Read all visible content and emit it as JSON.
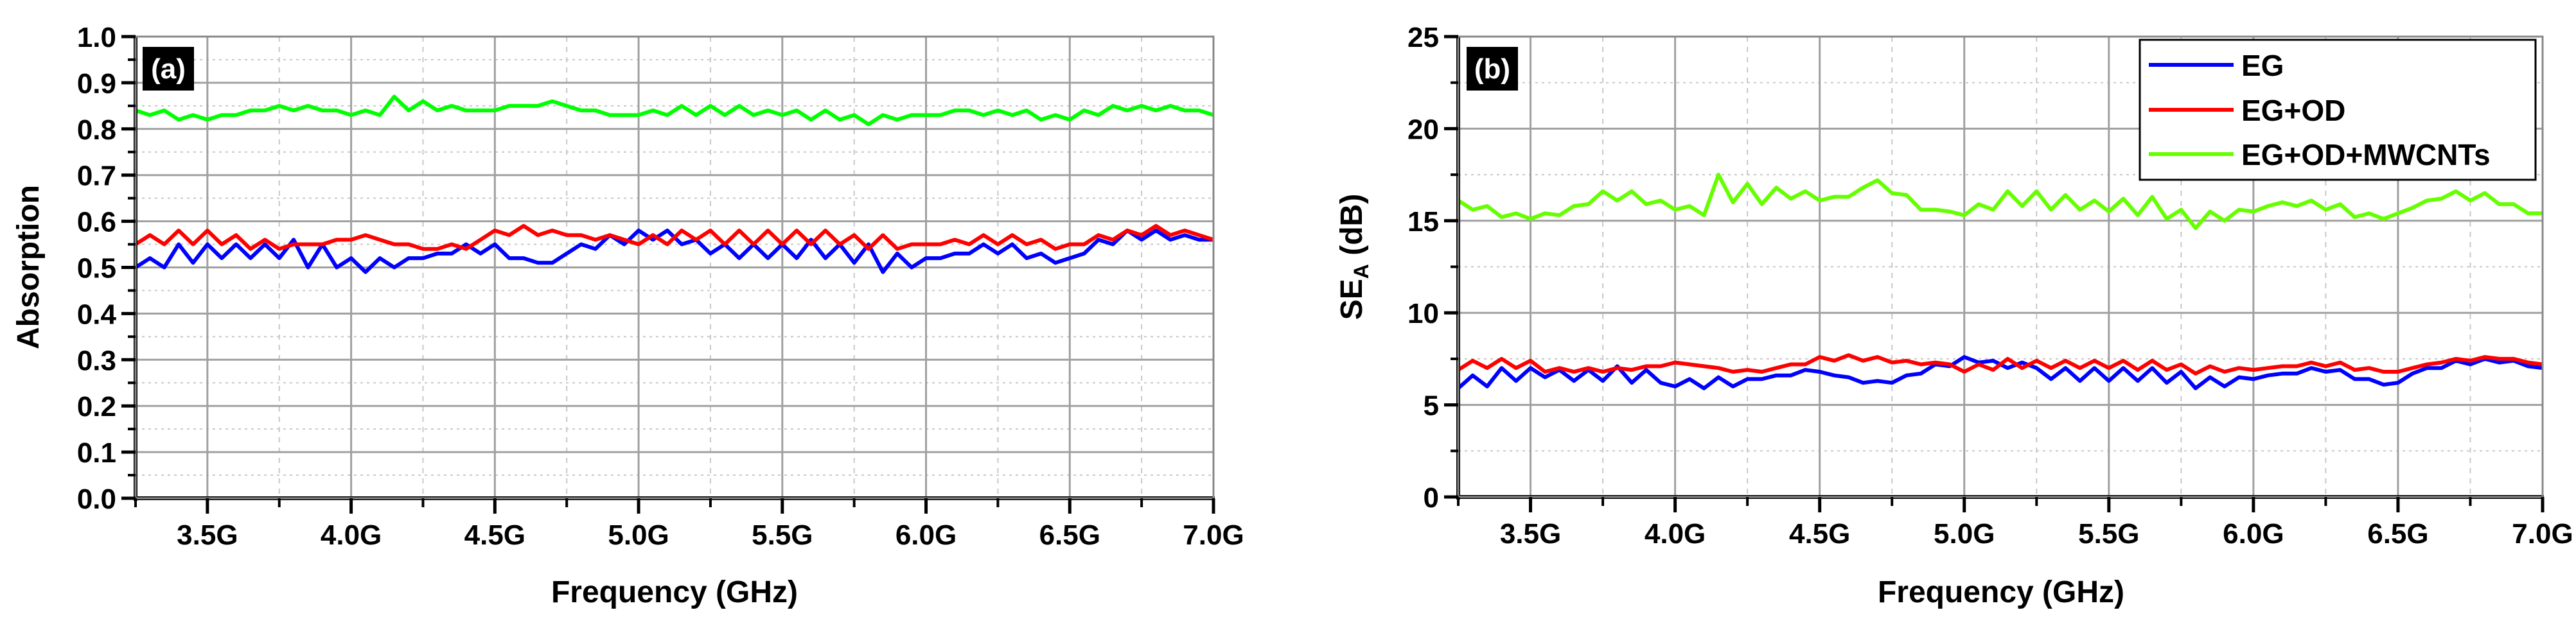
{
  "chart_data": [
    {
      "type": "line",
      "panel_label": "(a)",
      "title": "",
      "xlabel": "Frequency (GHz)",
      "ylabel": "Absorption",
      "xlim": [
        3.25,
        7.0
      ],
      "ylim": [
        0.0,
        1.0
      ],
      "x_ticks": [
        3.5,
        4.0,
        4.5,
        5.0,
        5.5,
        6.0,
        6.5,
        7.0
      ],
      "x_tick_labels": [
        "3.5G",
        "4.0G",
        "4.5G",
        "5.0G",
        "5.5G",
        "6.0G",
        "6.5G",
        "7.0G"
      ],
      "y_ticks": [
        0.0,
        0.1,
        0.2,
        0.3,
        0.4,
        0.5,
        0.6,
        0.7,
        0.8,
        0.9,
        1.0
      ],
      "y_tick_labels": [
        "0.0",
        "0.1",
        "0.2",
        "0.3",
        "0.4",
        "0.5",
        "0.6",
        "0.7",
        "0.8",
        "0.9",
        "1.0"
      ],
      "grid": true,
      "legend_position": "none",
      "x": [
        3.25,
        3.3,
        3.35,
        3.4,
        3.45,
        3.5,
        3.55,
        3.6,
        3.65,
        3.7,
        3.75,
        3.8,
        3.85,
        3.9,
        3.95,
        4.0,
        4.05,
        4.1,
        4.15,
        4.2,
        4.25,
        4.3,
        4.35,
        4.4,
        4.45,
        4.5,
        4.55,
        4.6,
        4.65,
        4.7,
        4.75,
        4.8,
        4.85,
        4.9,
        4.95,
        5.0,
        5.05,
        5.1,
        5.15,
        5.2,
        5.25,
        5.3,
        5.35,
        5.4,
        5.45,
        5.5,
        5.55,
        5.6,
        5.65,
        5.7,
        5.75,
        5.8,
        5.85,
        5.9,
        5.95,
        6.0,
        6.05,
        6.1,
        6.15,
        6.2,
        6.25,
        6.3,
        6.35,
        6.4,
        6.45,
        6.5,
        6.55,
        6.6,
        6.65,
        6.7,
        6.75,
        6.8,
        6.85,
        6.9,
        6.95,
        7.0
      ],
      "series": [
        {
          "name": "EG",
          "color": "#0000ff",
          "values": [
            0.5,
            0.52,
            0.5,
            0.55,
            0.51,
            0.55,
            0.52,
            0.55,
            0.52,
            0.55,
            0.52,
            0.56,
            0.5,
            0.55,
            0.5,
            0.52,
            0.49,
            0.52,
            0.5,
            0.52,
            0.52,
            0.53,
            0.53,
            0.55,
            0.53,
            0.55,
            0.52,
            0.52,
            0.51,
            0.51,
            0.53,
            0.55,
            0.54,
            0.57,
            0.55,
            0.58,
            0.56,
            0.58,
            0.55,
            0.56,
            0.53,
            0.55,
            0.52,
            0.55,
            0.52,
            0.55,
            0.52,
            0.56,
            0.52,
            0.55,
            0.51,
            0.55,
            0.49,
            0.53,
            0.5,
            0.52,
            0.52,
            0.53,
            0.53,
            0.55,
            0.53,
            0.55,
            0.52,
            0.53,
            0.51,
            0.52,
            0.53,
            0.56,
            0.55,
            0.58,
            0.56,
            0.58,
            0.56,
            0.57,
            0.56,
            0.56
          ]
        },
        {
          "name": "EG+OD",
          "color": "#ff0000",
          "values": [
            0.55,
            0.57,
            0.55,
            0.58,
            0.55,
            0.58,
            0.55,
            0.57,
            0.54,
            0.56,
            0.54,
            0.55,
            0.55,
            0.55,
            0.56,
            0.56,
            0.57,
            0.56,
            0.55,
            0.55,
            0.54,
            0.54,
            0.55,
            0.54,
            0.56,
            0.58,
            0.57,
            0.59,
            0.57,
            0.58,
            0.57,
            0.57,
            0.56,
            0.57,
            0.56,
            0.55,
            0.57,
            0.55,
            0.58,
            0.56,
            0.58,
            0.55,
            0.58,
            0.55,
            0.58,
            0.55,
            0.58,
            0.55,
            0.58,
            0.55,
            0.57,
            0.54,
            0.57,
            0.54,
            0.55,
            0.55,
            0.55,
            0.56,
            0.55,
            0.57,
            0.55,
            0.57,
            0.55,
            0.56,
            0.54,
            0.55,
            0.55,
            0.57,
            0.56,
            0.58,
            0.57,
            0.59,
            0.57,
            0.58,
            0.57,
            0.56
          ]
        },
        {
          "name": "EG+OD+MWCNTs",
          "color": "#00ff00",
          "values": [
            0.84,
            0.83,
            0.84,
            0.82,
            0.83,
            0.82,
            0.83,
            0.83,
            0.84,
            0.84,
            0.85,
            0.84,
            0.85,
            0.84,
            0.84,
            0.83,
            0.84,
            0.83,
            0.87,
            0.84,
            0.86,
            0.84,
            0.85,
            0.84,
            0.84,
            0.84,
            0.85,
            0.85,
            0.85,
            0.86,
            0.85,
            0.84,
            0.84,
            0.83,
            0.83,
            0.83,
            0.84,
            0.83,
            0.85,
            0.83,
            0.85,
            0.83,
            0.85,
            0.83,
            0.84,
            0.83,
            0.84,
            0.82,
            0.84,
            0.82,
            0.83,
            0.81,
            0.83,
            0.82,
            0.83,
            0.83,
            0.83,
            0.84,
            0.84,
            0.83,
            0.84,
            0.83,
            0.84,
            0.82,
            0.83,
            0.82,
            0.84,
            0.83,
            0.85,
            0.84,
            0.85,
            0.84,
            0.85,
            0.84,
            0.84,
            0.83
          ]
        }
      ]
    },
    {
      "type": "line",
      "panel_label": "(b)",
      "title": "",
      "xlabel": "Frequency (GHz)",
      "ylabel": "SE_A (dB)",
      "ylabel_main": "SE",
      "ylabel_sub": "A",
      "ylabel_unit": " (dB)",
      "xlim": [
        3.25,
        7.0
      ],
      "ylim": [
        0,
        25
      ],
      "x_ticks": [
        3.5,
        4.0,
        4.5,
        5.0,
        5.5,
        6.0,
        6.5,
        7.0
      ],
      "x_tick_labels": [
        "3.5G",
        "4.0G",
        "4.5G",
        "5.0G",
        "5.5G",
        "6.0G",
        "6.5G",
        "7.0G"
      ],
      "y_ticks": [
        0,
        5,
        10,
        15,
        20,
        25
      ],
      "y_tick_labels": [
        "0",
        "5",
        "10",
        "15",
        "20",
        "25"
      ],
      "grid": true,
      "legend_position": "upper right",
      "legend": [
        "EG",
        "EG+OD",
        "EG+OD+MWCNTs"
      ],
      "x": [
        3.25,
        3.3,
        3.35,
        3.4,
        3.45,
        3.5,
        3.55,
        3.6,
        3.65,
        3.7,
        3.75,
        3.8,
        3.85,
        3.9,
        3.95,
        4.0,
        4.05,
        4.1,
        4.15,
        4.2,
        4.25,
        4.3,
        4.35,
        4.4,
        4.45,
        4.5,
        4.55,
        4.6,
        4.65,
        4.7,
        4.75,
        4.8,
        4.85,
        4.9,
        4.95,
        5.0,
        5.05,
        5.1,
        5.15,
        5.2,
        5.25,
        5.3,
        5.35,
        5.4,
        5.45,
        5.5,
        5.55,
        5.6,
        5.65,
        5.7,
        5.75,
        5.8,
        5.85,
        5.9,
        5.95,
        6.0,
        6.05,
        6.1,
        6.15,
        6.2,
        6.25,
        6.3,
        6.35,
        6.4,
        6.45,
        6.5,
        6.55,
        6.6,
        6.65,
        6.7,
        6.75,
        6.8,
        6.85,
        6.9,
        6.95,
        7.0
      ],
      "series": [
        {
          "name": "EG",
          "color": "#0000ff",
          "values": [
            5.9,
            6.6,
            6.0,
            7.0,
            6.3,
            7.0,
            6.5,
            6.9,
            6.3,
            6.9,
            6.3,
            7.1,
            6.2,
            6.9,
            6.2,
            6.0,
            6.4,
            5.9,
            6.5,
            6.0,
            6.4,
            6.4,
            6.6,
            6.6,
            6.9,
            6.8,
            6.6,
            6.5,
            6.2,
            6.3,
            6.2,
            6.6,
            6.7,
            7.2,
            7.1,
            7.6,
            7.3,
            7.4,
            7.0,
            7.3,
            7.0,
            6.4,
            7.0,
            6.3,
            7.0,
            6.3,
            7.0,
            6.3,
            7.0,
            6.2,
            6.8,
            5.9,
            6.5,
            6.0,
            6.5,
            6.4,
            6.6,
            6.7,
            6.7,
            7.0,
            6.8,
            6.9,
            6.4,
            6.4,
            6.1,
            6.2,
            6.7,
            7.0,
            7.0,
            7.4,
            7.2,
            7.5,
            7.3,
            7.4,
            7.1,
            7.0
          ]
        },
        {
          "name": "EG+OD",
          "color": "#ff0000",
          "values": [
            6.9,
            7.4,
            7.0,
            7.5,
            7.0,
            7.4,
            6.8,
            7.0,
            6.8,
            7.0,
            6.8,
            7.0,
            6.9,
            7.1,
            7.1,
            7.3,
            7.2,
            7.1,
            7.0,
            6.8,
            6.9,
            6.8,
            7.0,
            7.2,
            7.2,
            7.6,
            7.4,
            7.7,
            7.4,
            7.6,
            7.3,
            7.4,
            7.2,
            7.3,
            7.2,
            6.8,
            7.2,
            6.9,
            7.5,
            7.0,
            7.4,
            7.0,
            7.4,
            7.0,
            7.4,
            7.0,
            7.4,
            6.9,
            7.4,
            6.9,
            7.2,
            6.7,
            7.1,
            6.8,
            7.0,
            6.9,
            7.0,
            7.1,
            7.1,
            7.3,
            7.1,
            7.3,
            6.9,
            7.0,
            6.8,
            6.8,
            7.0,
            7.2,
            7.3,
            7.5,
            7.4,
            7.6,
            7.5,
            7.5,
            7.3,
            7.2
          ]
        },
        {
          "name": "EG+OD+MWCNTs",
          "color": "#66ff00",
          "values": [
            16.1,
            15.6,
            15.8,
            15.2,
            15.4,
            15.1,
            15.4,
            15.3,
            15.8,
            15.9,
            16.6,
            16.1,
            16.6,
            15.9,
            16.1,
            15.6,
            15.8,
            15.3,
            17.5,
            16.0,
            17.0,
            15.9,
            16.8,
            16.2,
            16.6,
            16.1,
            16.3,
            16.3,
            16.8,
            17.2,
            16.5,
            16.4,
            15.6,
            15.6,
            15.5,
            15.3,
            15.9,
            15.6,
            16.6,
            15.8,
            16.6,
            15.6,
            16.4,
            15.6,
            16.1,
            15.5,
            16.2,
            15.3,
            16.3,
            15.1,
            15.6,
            14.6,
            15.5,
            15.0,
            15.6,
            15.5,
            15.8,
            16.0,
            15.8,
            16.1,
            15.6,
            15.9,
            15.2,
            15.4,
            15.1,
            15.4,
            15.7,
            16.1,
            16.2,
            16.6,
            16.1,
            16.5,
            15.9,
            15.9,
            15.4,
            15.4
          ]
        }
      ]
    }
  ]
}
